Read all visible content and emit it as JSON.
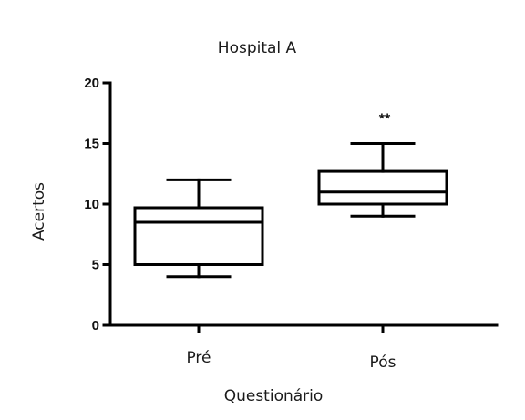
{
  "chart_data": {
    "type": "box",
    "title": "Hospital A",
    "xlabel": "Questionário",
    "ylabel": "Acertos",
    "ylim": [
      0,
      20
    ],
    "yticks": [
      0,
      5,
      10,
      15,
      20
    ],
    "grid": false,
    "categories": [
      "Pré",
      "Pós"
    ],
    "boxes": [
      {
        "category": "Pré",
        "min": 4,
        "q1": 5,
        "median": 8.5,
        "q3": 9.7,
        "max": 12,
        "annotation": ""
      },
      {
        "category": "Pós",
        "min": 9,
        "q1": 10,
        "median": 11,
        "q3": 12.7,
        "max": 15,
        "annotation": "**"
      }
    ]
  }
}
